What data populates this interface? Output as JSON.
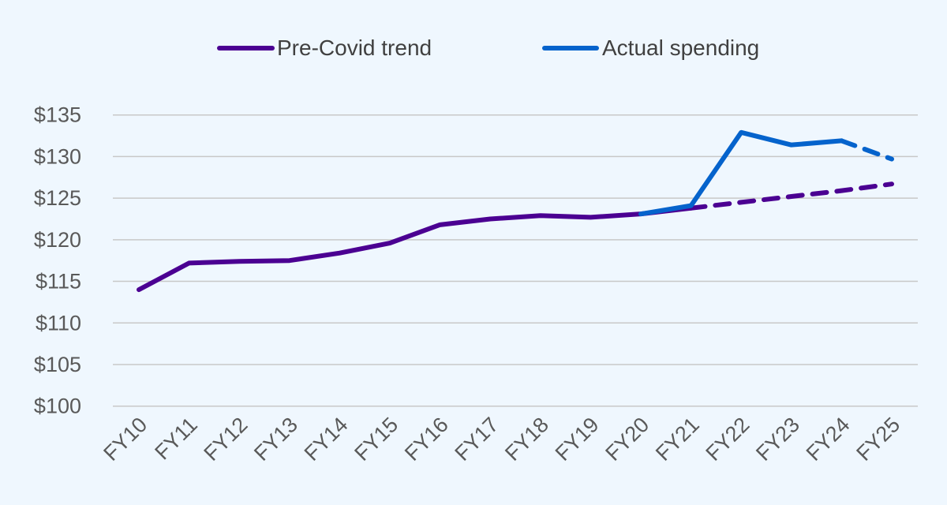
{
  "chart_data": {
    "type": "line",
    "title": "",
    "xlabel": "",
    "ylabel": "",
    "categories": [
      "FY10",
      "FY11",
      "FY12",
      "FY13",
      "FY14",
      "FY15",
      "FY16",
      "FY17",
      "FY18",
      "FY19",
      "FY20",
      "FY21",
      "FY22",
      "FY23",
      "FY24",
      "FY25"
    ],
    "ylim": [
      100,
      135
    ],
    "yticks": [
      "$100",
      "$105",
      "$110",
      "$115",
      "$120",
      "$125",
      "$130",
      "$135"
    ],
    "ytick_values": [
      100,
      105,
      110,
      115,
      120,
      125,
      130,
      135
    ],
    "grid": "horizontal",
    "legend_position": "top",
    "series": [
      {
        "name": "Pre-Covid trend",
        "color": "#4b0092",
        "values": [
          114.0,
          117.2,
          117.4,
          117.5,
          118.4,
          119.6,
          121.8,
          122.5,
          122.9,
          122.7,
          123.1,
          123.8,
          124.5,
          125.2,
          125.9,
          126.7
        ],
        "dashed_from": "FY21"
      },
      {
        "name": "Actual spending",
        "color": "#0563cc",
        "values": [
          null,
          null,
          null,
          null,
          null,
          null,
          null,
          null,
          null,
          null,
          123.1,
          124.1,
          132.9,
          131.4,
          131.9,
          129.7
        ],
        "dashed_from": "FY24"
      }
    ]
  }
}
